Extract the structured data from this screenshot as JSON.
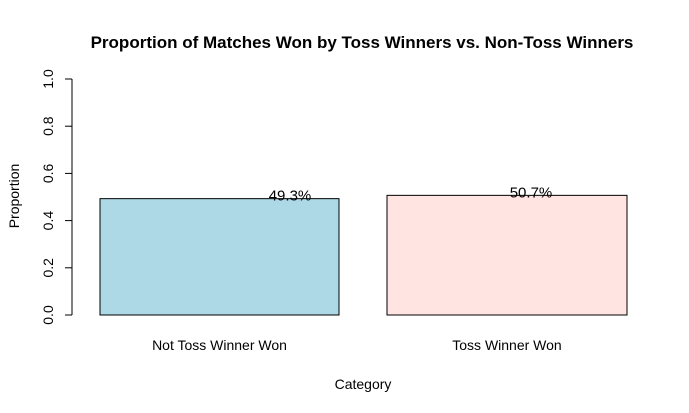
{
  "chart_data": {
    "type": "bar",
    "title": "Proportion of Matches Won by Toss Winners vs. Non-Toss Winners",
    "xlabel": "Category",
    "ylabel": "Proportion",
    "categories": [
      "Not Toss Winner Won",
      "Toss Winner Won"
    ],
    "values": [
      0.493,
      0.507
    ],
    "data_labels": [
      "49.3%",
      "50.7%"
    ],
    "colors": [
      "#add8e6",
      "#ffe4e1"
    ],
    "ylim": [
      0,
      1
    ],
    "yticks": [
      0.0,
      0.2,
      0.4,
      0.6,
      0.8,
      1.0
    ],
    "ytick_labels": [
      "0.0",
      "0.2",
      "0.4",
      "0.6",
      "0.8",
      "1.0"
    ],
    "grid": false,
    "legend": "none"
  }
}
